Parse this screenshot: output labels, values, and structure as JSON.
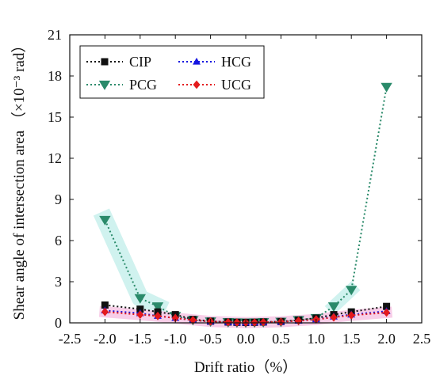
{
  "chart_data": {
    "type": "line",
    "xlabel": "Drift ratio（%）",
    "ylabel": "Shear angle of intersection area （×10⁻³ rad）",
    "xlim": [
      -2.5,
      2.5
    ],
    "ylim": [
      0,
      21
    ],
    "xticks": [
      "-2.5",
      "-2.0",
      "-1.5",
      "-1.0",
      "-0.5",
      "0.0",
      "0.5",
      "1.0",
      "1.5",
      "2.0",
      "2.5"
    ],
    "yticks": [
      "0",
      "3",
      "6",
      "9",
      "12",
      "15",
      "18",
      "21"
    ],
    "grid": false,
    "legend_position": "top-left",
    "series": [
      {
        "name": "CIP",
        "color": "#111111",
        "marker": "square",
        "x": [
          -2.0,
          -1.5,
          -1.25,
          -1.0,
          -0.75,
          -0.5,
          -0.25,
          -0.125,
          0.0,
          0.125,
          0.25,
          0.5,
          0.75,
          1.0,
          1.25,
          1.5,
          2.0
        ],
        "y": [
          1.3,
          1.0,
          0.8,
          0.6,
          0.25,
          0.12,
          0.06,
          0.04,
          0.03,
          0.04,
          0.06,
          0.1,
          0.2,
          0.35,
          0.6,
          0.8,
          1.2
        ]
      },
      {
        "name": "HCG",
        "color": "#1515e0",
        "marker": "triangle-up",
        "x": [
          -2.0,
          -1.5,
          -1.25,
          -1.0,
          -0.75,
          -0.5,
          -0.25,
          -0.125,
          0.0,
          0.125,
          0.25,
          0.5,
          0.75,
          1.0,
          1.25,
          1.5,
          2.0
        ],
        "y": [
          0.9,
          0.7,
          0.5,
          0.35,
          0.2,
          0.1,
          0.05,
          0.03,
          0.02,
          0.03,
          0.05,
          0.08,
          0.15,
          0.25,
          0.45,
          0.6,
          0.85
        ]
      },
      {
        "name": "PCG",
        "color": "#2a8a6a",
        "marker": "triangle-down",
        "x": [
          -2.0,
          -1.5,
          -1.25,
          -1.0,
          -0.75,
          -0.5,
          -0.25,
          -0.125,
          0.0,
          0.125,
          0.25,
          0.5,
          0.75,
          1.0,
          1.25,
          1.5,
          2.0
        ],
        "y": [
          7.5,
          1.8,
          1.2,
          0.5,
          0.2,
          0.1,
          0.05,
          0.03,
          0.02,
          0.03,
          0.05,
          0.08,
          0.2,
          0.35,
          1.2,
          2.4,
          17.2
        ]
      },
      {
        "name": "UCG",
        "color": "#e41a1c",
        "marker": "diamond",
        "x": [
          -2.0,
          -1.5,
          -1.25,
          -1.0,
          -0.75,
          -0.5,
          -0.25,
          -0.125,
          0.0,
          0.125,
          0.25,
          0.5,
          0.75,
          1.0,
          1.25,
          1.5,
          2.0
        ],
        "y": [
          0.8,
          0.6,
          0.5,
          0.35,
          0.2,
          0.1,
          0.05,
          0.03,
          0.02,
          0.03,
          0.05,
          0.08,
          0.15,
          0.25,
          0.4,
          0.55,
          0.75
        ]
      }
    ]
  }
}
